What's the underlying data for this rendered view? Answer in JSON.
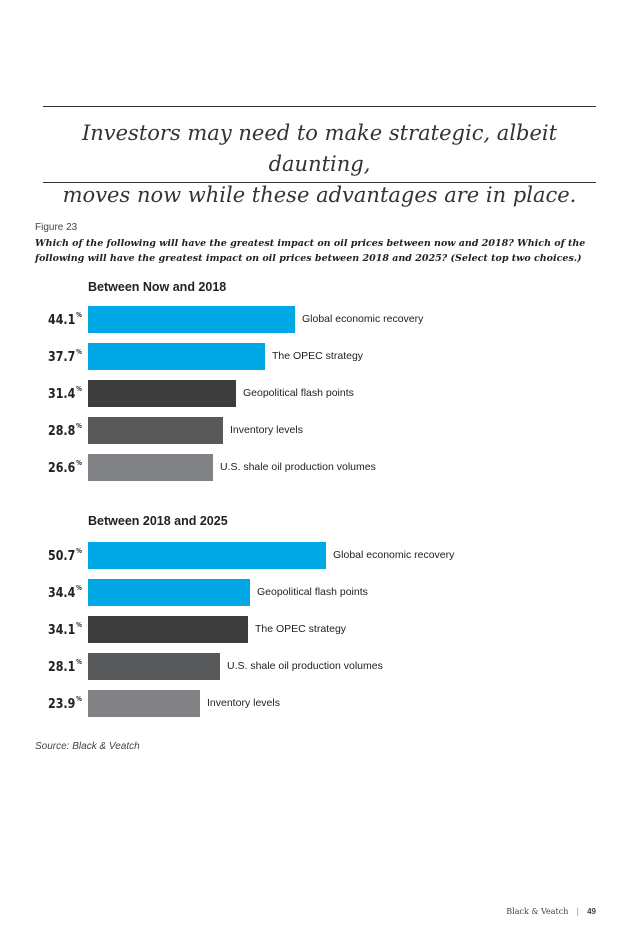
{
  "quote": {
    "line1": "Investors may need to make strategic, albeit daunting,",
    "line2": "moves now while these advantages are in place."
  },
  "figure": {
    "label": "Figure 23",
    "question_line1": "Which of the following will have the greatest impact on oil prices between now and 2018? Which of the",
    "question_line2": "following will have the greatest impact on oil prices between 2018 and 2025? (Select top two choices.)"
  },
  "chart_data": [
    {
      "type": "bar",
      "title": "Between Now and 2018",
      "unit": "%",
      "categories": [
        "Global economic recovery",
        "The OPEC strategy",
        "Geopolitical flash points",
        "Inventory levels",
        "U.S. shale oil production volumes"
      ],
      "values": [
        44.1,
        37.7,
        31.4,
        28.8,
        26.6
      ],
      "colors": [
        "#00a9e6",
        "#00a9e6",
        "#3d3d3d",
        "#58595b",
        "#808285"
      ]
    },
    {
      "type": "bar",
      "title": "Between 2018 and 2025",
      "unit": "%",
      "categories": [
        "Global economic recovery",
        "Geopolitical flash points",
        "The OPEC strategy",
        "U.S. shale oil production volumes",
        "Inventory levels"
      ],
      "values": [
        50.7,
        34.4,
        34.1,
        28.1,
        23.9
      ],
      "colors": [
        "#00a9e6",
        "#00a9e6",
        "#3d3d3d",
        "#58595b",
        "#808285"
      ]
    }
  ],
  "source": "Source: Black & Veatch",
  "footer": {
    "company": "Black & Veatch",
    "separator": "|",
    "page": "49"
  }
}
